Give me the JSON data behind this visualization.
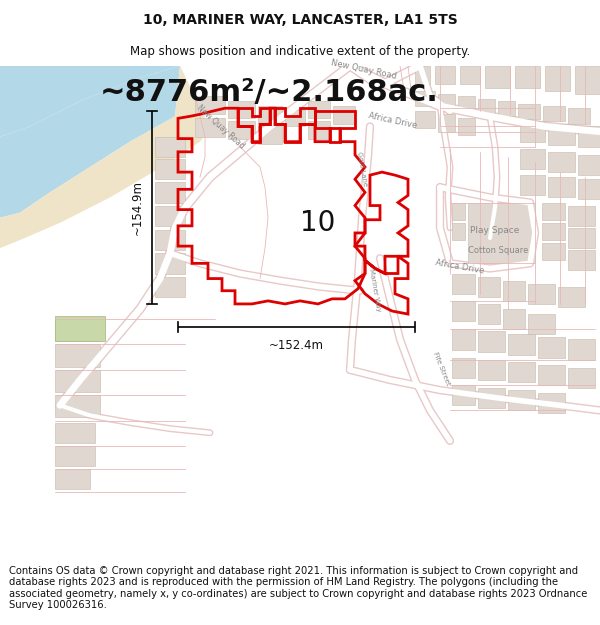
{
  "title": "10, MARINER WAY, LANCASTER, LA1 5TS",
  "subtitle": "Map shows position and indicative extent of the property.",
  "area_text": "~8776m²/~2.168ac.",
  "dim_width": "~152.4m",
  "dim_height": "~154.9m",
  "label": "10",
  "footer": "Contains OS data © Crown copyright and database right 2021. This information is subject to Crown copyright and database rights 2023 and is reproduced with the permission of HM Land Registry. The polygons (including the associated geometry, namely x, y co-ordinates) are subject to Crown copyright and database rights 2023 Ordnance Survey 100026316.",
  "map_bg": "#f0ede8",
  "water_color": "#b3d9e8",
  "sand_color": "#f0e4c8",
  "road_fill": "#ffffff",
  "road_outline": "#e8c8c8",
  "bldg_fill": "#e0d8d0",
  "bldg_outline": "#c8b8a8",
  "bldg_fill_dark": "#d4ccc4",
  "street_color": "#e8b8b8",
  "plot_color": "#dd0000",
  "plot_lw": 2.0,
  "dim_color": "#000000",
  "text_color": "#333333",
  "title_fontsize": 10,
  "subtitle_fontsize": 8.5,
  "area_fontsize": 22,
  "label_fontsize": 20,
  "dim_fontsize": 8.5,
  "footer_fontsize": 7.2,
  "fig_width": 6.0,
  "fig_height": 6.25
}
